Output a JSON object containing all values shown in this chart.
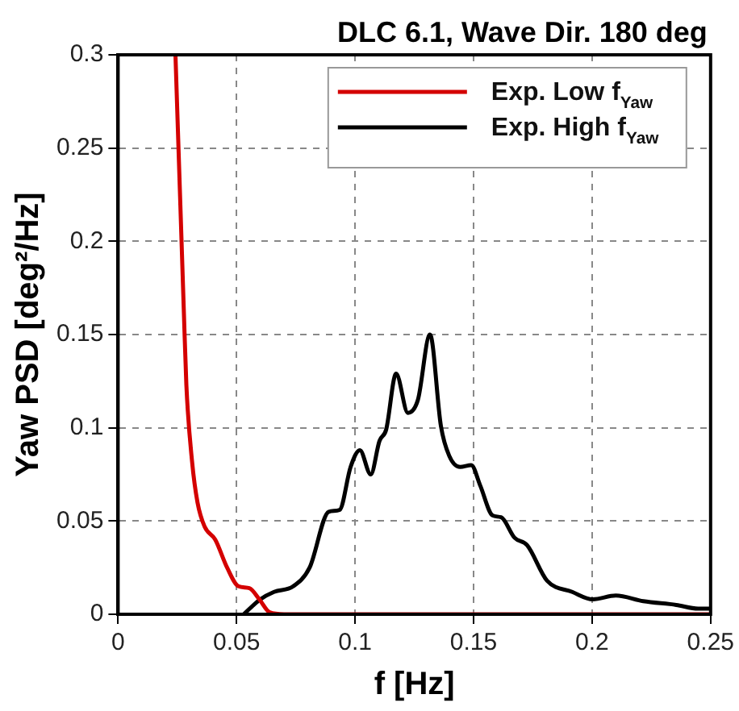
{
  "chart_data": {
    "type": "line",
    "title": "DLC 6.1, Wave Dir. 180 deg",
    "xlabel": "f [Hz]",
    "ylabel": "Yaw PSD [deg²/Hz]",
    "series": [
      {
        "name": "Exp. Low f$_{Yaw}$",
        "color": "#d40000",
        "x": [
          0.0242,
          0.0277,
          0.0288,
          0.0312,
          0.0335,
          0.0365,
          0.041,
          0.046,
          0.0508,
          0.0554,
          0.0596,
          0.064,
          0.07,
          0.1,
          0.15,
          0.2,
          0.25
        ],
        "values": [
          0.3,
          0.164,
          0.123,
          0.082,
          0.06,
          0.047,
          0.04,
          0.025,
          0.015,
          0.014,
          0.008,
          0.001,
          0,
          0,
          0,
          0,
          0
        ]
      },
      {
        "name": "Exp. High f$_{Yaw}$",
        "color": "#000000",
        "x": [
          0.053,
          0.06,
          0.0658,
          0.0739,
          0.0808,
          0.0889,
          0.0935,
          0.0981,
          0.102,
          0.1066,
          0.1103,
          0.1131,
          0.1173,
          0.1223,
          0.1265,
          0.1316,
          0.1362,
          0.1397,
          0.1443,
          0.149,
          0.1528,
          0.158,
          0.1616,
          0.1673,
          0.1726,
          0.181,
          0.1916,
          0.2003,
          0.21,
          0.2216,
          0.2355,
          0.2447,
          0.25
        ],
        "values": [
          0,
          0.008,
          0.012,
          0.015,
          0.025,
          0.055,
          0.056,
          0.079,
          0.088,
          0.075,
          0.093,
          0.099,
          0.129,
          0.108,
          0.115,
          0.15,
          0.101,
          0.085,
          0.079,
          0.08,
          0.069,
          0.053,
          0.052,
          0.041,
          0.037,
          0.018,
          0.012,
          0.008,
          0.01,
          0.007,
          0.005,
          0.003,
          0.003
        ]
      }
    ],
    "xlim": [
      0,
      0.25
    ],
    "xticks": [
      0,
      0.05,
      0.1,
      0.15,
      0.2,
      0.25
    ],
    "ylim": [
      0,
      0.3
    ],
    "yticks": [
      0,
      0.05,
      0.1,
      0.15,
      0.2,
      0.25,
      0.3
    ],
    "grid": true,
    "legend": "top right",
    "marker": "none",
    "line_style": "solid"
  }
}
